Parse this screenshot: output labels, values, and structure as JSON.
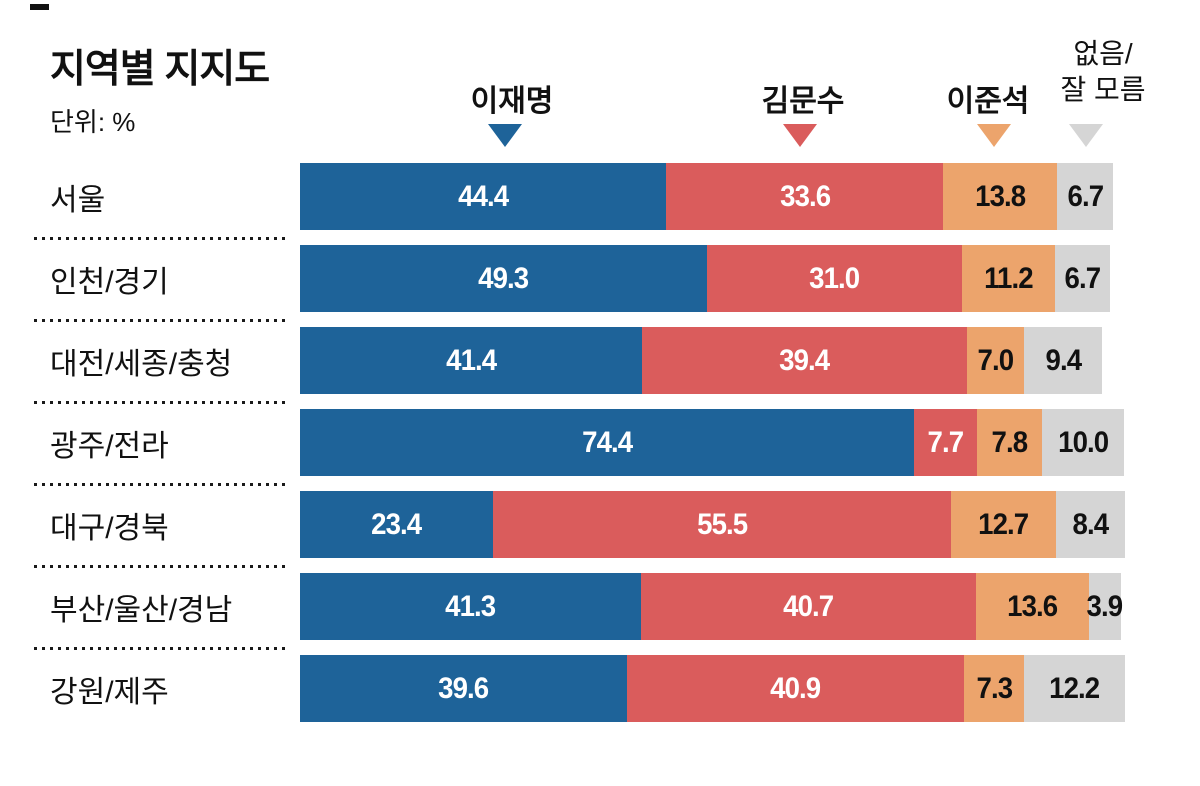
{
  "header": {
    "title": "지역별 지지도",
    "unit_label": "단위: %"
  },
  "legend": {
    "none_line1": "없음/",
    "none_line2": "잘 모름"
  },
  "chart_data": {
    "type": "bar",
    "orientation": "horizontal-stacked",
    "title": "지역별 지지도",
    "unit": "%",
    "x_max": 100,
    "value_format": "one-decimal",
    "grid": false,
    "legend_position": "top",
    "categories": [
      "서울",
      "인천/경기",
      "대전/세종/충청",
      "광주/전라",
      "대구/경북",
      "부산/울산/경남",
      "강원/제주"
    ],
    "series": [
      {
        "key": "lee-jae-myung",
        "name": "이재명",
        "color": "#1E6399",
        "label_color": "#ffffff",
        "values": [
          44.4,
          49.3,
          41.4,
          74.4,
          23.4,
          41.3,
          39.6
        ]
      },
      {
        "key": "kim-moon-soo",
        "name": "김문수",
        "color": "#DA5C5C",
        "label_color": "#ffffff",
        "values": [
          33.6,
          31.0,
          39.4,
          7.7,
          55.5,
          40.7,
          40.9
        ]
      },
      {
        "key": "lee-jun-seok",
        "name": "이준석",
        "color": "#ECA46C",
        "label_color": "#111111",
        "values": [
          13.8,
          11.2,
          7.0,
          7.8,
          12.7,
          13.6,
          7.3
        ]
      },
      {
        "key": "none-dont-know",
        "name": "없음/잘 모름",
        "color": "#D5D5D5",
        "label_color": "#111111",
        "values": [
          6.7,
          6.7,
          9.4,
          10.0,
          8.4,
          3.9,
          12.2
        ]
      }
    ]
  }
}
